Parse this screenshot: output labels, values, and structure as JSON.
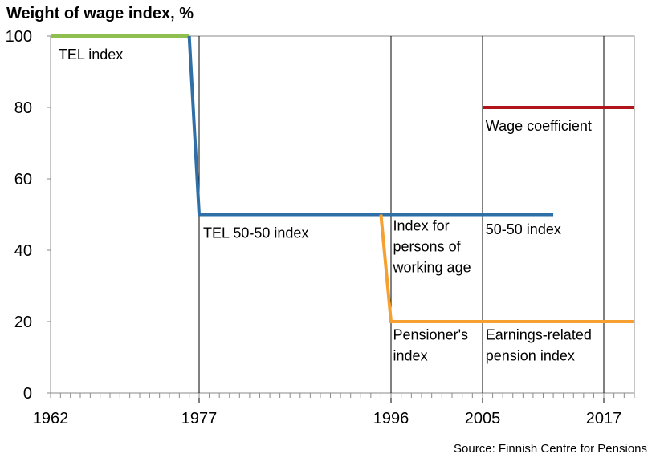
{
  "chart_data": {
    "type": "line",
    "title": "Weight of wage index, %",
    "source": "Source: Finnish Centre for Pensions",
    "xlim": [
      1962,
      2020
    ],
    "ylim": [
      0,
      100
    ],
    "x_ticks": [
      1962,
      1977,
      1996,
      2005,
      2017
    ],
    "y_ticks": [
      0,
      20,
      40,
      60,
      80,
      100
    ],
    "vertical_reference_lines": [
      1977,
      1996,
      2005,
      2017
    ],
    "grid": false,
    "series": [
      {
        "color": "#8fc04f",
        "points": [
          [
            1962,
            100
          ],
          [
            1976,
            100
          ]
        ]
      },
      {
        "color": "#2e6fa7",
        "points": [
          [
            1976,
            100
          ],
          [
            1977,
            50
          ],
          [
            2012,
            50
          ]
        ]
      },
      {
        "color": "#f5a030",
        "points": [
          [
            1995,
            50
          ],
          [
            1996,
            20
          ],
          [
            2020,
            20
          ]
        ]
      },
      {
        "color": "#b0151b",
        "points": [
          [
            2005,
            80
          ],
          [
            2020,
            80
          ]
        ]
      }
    ],
    "annotations": [
      {
        "lines": [
          "TEL index"
        ],
        "x": 1962.8,
        "y": 93.5
      },
      {
        "lines": [
          "Wage coefficient"
        ],
        "x": 2005.3,
        "y": 73.5
      },
      {
        "lines": [
          "TEL 50-50 index"
        ],
        "x": 1977.4,
        "y": 43.5
      },
      {
        "lines": [
          "Index for",
          "persons of",
          "working age"
        ],
        "x": 1996.2,
        "y": 45.5
      },
      {
        "lines": [
          "50-50 index"
        ],
        "x": 2005.3,
        "y": 44.5
      },
      {
        "lines": [
          "Pensioner's",
          "index"
        ],
        "x": 1996.2,
        "y": 15
      },
      {
        "lines": [
          "Earnings-related",
          "pension index"
        ],
        "x": 2005.3,
        "y": 15
      }
    ]
  }
}
